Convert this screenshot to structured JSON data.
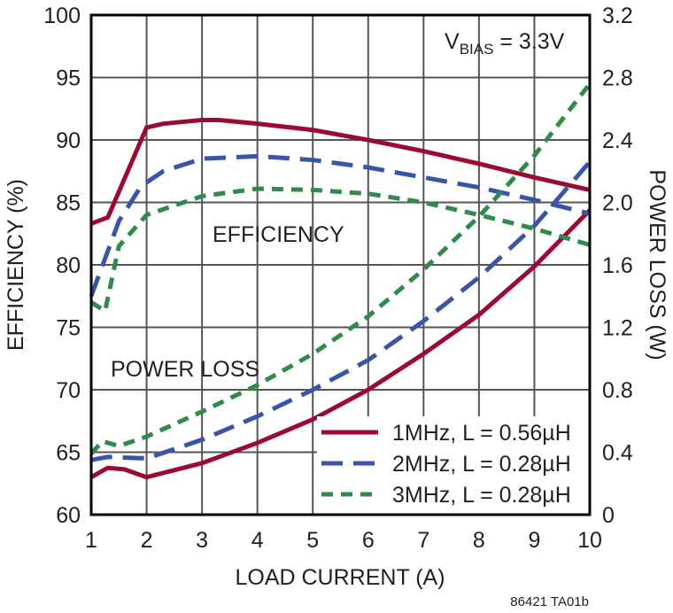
{
  "chart_data": {
    "type": "line",
    "xlabel": "LOAD CURRENT (A)",
    "ylabel": "EFFICIENCY (%)",
    "y2label": "POWER LOSS (W)",
    "xlim": [
      1,
      10
    ],
    "ylim": [
      60,
      100
    ],
    "y2lim": [
      0,
      3.2
    ],
    "xticks": [
      "1",
      "2",
      "3",
      "4",
      "5",
      "6",
      "7",
      "8",
      "9",
      "10"
    ],
    "yticks": [
      "60",
      "65",
      "70",
      "75",
      "80",
      "85",
      "90",
      "95",
      "100"
    ],
    "y2ticks": [
      "0",
      "0.4",
      "0.8",
      "1.2",
      "1.6",
      "2.0",
      "2.4",
      "2.8",
      "3.2"
    ],
    "grid": true,
    "legend_position": "bottom-right",
    "annotation": {
      "v": "V",
      "sub": "BIAS",
      "rest": " = 3.3V"
    },
    "efficiency_label": "EFFICIENCY",
    "power_loss_label": "POWER LOSS",
    "footnote": "86421 TA01b",
    "series": [
      {
        "name": "1MHz, L = 0.56µH",
        "color": "#9b0a32",
        "dash": "solid",
        "efficiency": {
          "x": [
            1,
            1.3,
            2,
            2.3,
            3,
            3.3,
            4,
            5,
            6,
            7,
            8,
            9,
            10
          ],
          "y": [
            83.3,
            83.8,
            91.0,
            91.3,
            91.6,
            91.6,
            91.3,
            90.8,
            90.0,
            89.1,
            88.1,
            87.0,
            86.0
          ]
        },
        "power_loss": {
          "x": [
            1,
            1.3,
            1.6,
            2,
            3,
            4,
            5,
            6,
            7,
            8,
            9,
            10
          ],
          "y": [
            0.24,
            0.3,
            0.29,
            0.24,
            0.33,
            0.46,
            0.61,
            0.8,
            1.03,
            1.28,
            1.59,
            1.95
          ]
        }
      },
      {
        "name": "2MHz, L = 0.28µH",
        "color": "#3a55a8",
        "dash": "long",
        "efficiency": {
          "x": [
            1,
            1.5,
            1.9,
            2.3,
            3,
            4,
            5,
            6,
            7,
            8,
            9,
            10
          ],
          "y": [
            77.5,
            83.5,
            86.3,
            87.5,
            88.5,
            88.7,
            88.4,
            87.8,
            87.0,
            86.2,
            85.2,
            84.1
          ]
        },
        "power_loss": {
          "x": [
            1,
            1.3,
            2,
            3,
            4,
            5,
            6,
            7,
            8,
            9,
            10
          ],
          "y": [
            0.35,
            0.37,
            0.36,
            0.48,
            0.63,
            0.8,
            0.99,
            1.24,
            1.52,
            1.85,
            2.26
          ]
        }
      },
      {
        "name": "3MHz, L = 0.28µH",
        "color": "#2f8a4b",
        "dash": "short",
        "efficiency": {
          "x": [
            1,
            1.25,
            1.5,
            2,
            3,
            4,
            5,
            6,
            7,
            8,
            9,
            10
          ],
          "y": [
            77.0,
            76.3,
            81.5,
            84.0,
            85.5,
            86.1,
            86.0,
            85.7,
            85.0,
            84.0,
            82.9,
            81.6
          ]
        },
        "power_loss": {
          "x": [
            1,
            1.2,
            1.5,
            2,
            3,
            4,
            5,
            6,
            7,
            8,
            9,
            10
          ],
          "y": [
            0.39,
            0.47,
            0.44,
            0.5,
            0.66,
            0.83,
            1.03,
            1.27,
            1.57,
            1.91,
            2.3,
            2.76
          ]
        }
      }
    ]
  }
}
